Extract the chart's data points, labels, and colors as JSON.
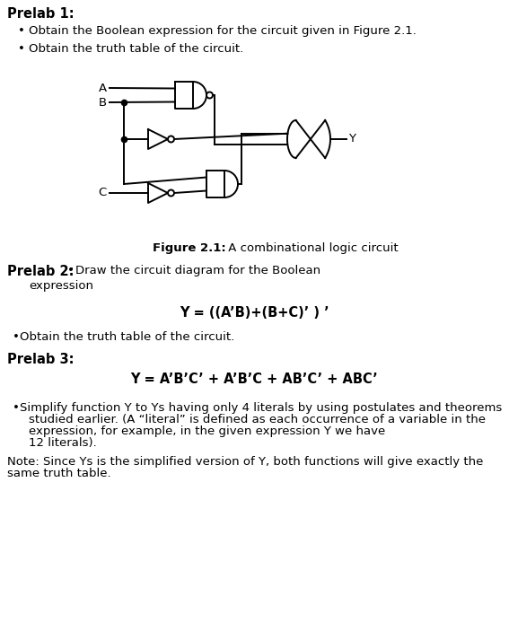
{
  "bg_color": "#ffffff",
  "text_color": "#000000",
  "fig_width": 5.67,
  "fig_height": 7.13,
  "dpi": 100,
  "prelab1_title": "Prelab 1:",
  "prelab1_bullet1": "Obtain the Boolean expression for the circuit given in Figure 2.1.",
  "prelab1_bullet2": "Obtain the truth table of the circuit.",
  "figure_caption_bold": "Figure 2.1:",
  "figure_caption_normal": " A combinational logic circuit",
  "prelab2_title": "Prelab 2:",
  "prelab2_bullet1_text": "Draw the circuit diagram for the Boolean",
  "prelab2_expression_label": "expression",
  "prelab2_equation": "Y = ((A’B)+(B+C)’ ) ’",
  "prelab2_bullet2": "Obtain the truth table of the circuit.",
  "prelab3_title": "Prelab 3:",
  "prelab3_equation": "Y = A’B’C’ + A’B’C + AB’C’ + ABC’",
  "prelab3_bullet_line1": "Simplify function Y to Ys having only 4 literals by using postulates and theorems",
  "prelab3_bullet_line2": "studied earlier. (A “literal” is defined as each occurrence of a variable in the",
  "prelab3_bullet_line3": "expression, for example, in the given expression Y we have",
  "prelab3_bullet_line4": "12 literals).",
  "note_line1": "Note: Since Ys is the simplified version of Y, both functions will give exactly the",
  "note_line2": "same truth table."
}
